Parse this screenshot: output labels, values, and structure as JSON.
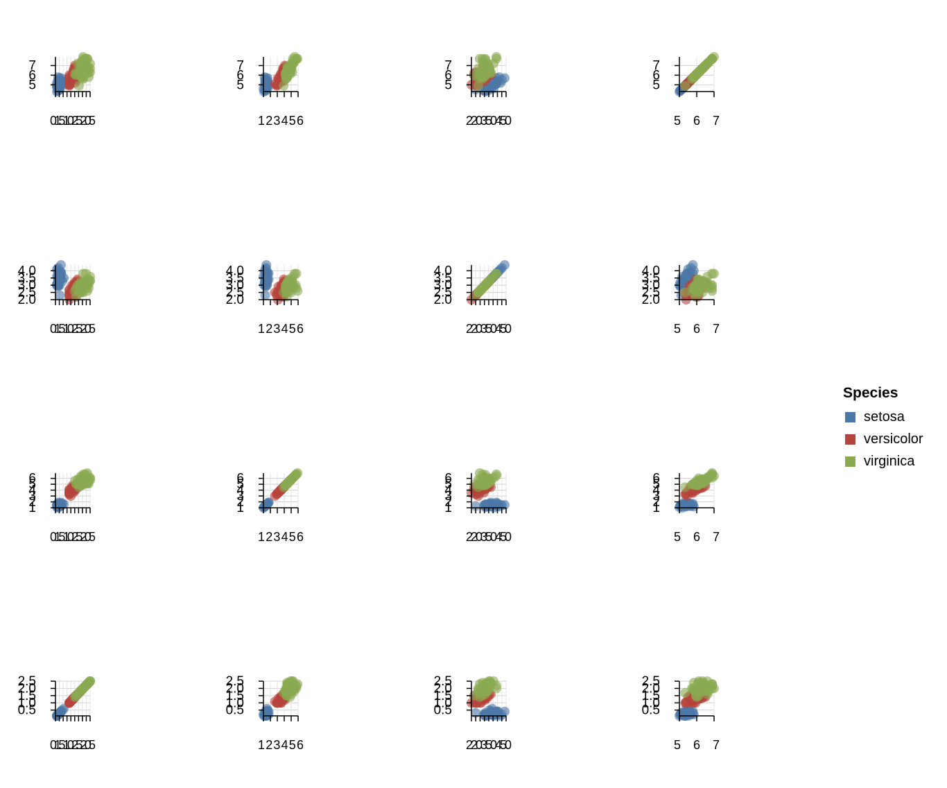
{
  "chart_data": {
    "type": "scatter",
    "layout": "scatterplot matrix (rows = y variable, columns = x variable)",
    "grid": true,
    "legend": {
      "title": "Species",
      "placement": "right",
      "entries": [
        {
          "name": "setosa",
          "color": "#4c78a8"
        },
        {
          "name": "versicolor",
          "color": "#b5443c"
        },
        {
          "name": "virginica",
          "color": "#8aaa52"
        }
      ]
    },
    "columns": [
      {
        "ticks": [
          "0",
          "1",
          "5",
          "1",
          "0",
          "2",
          "5",
          "2",
          "0",
          "5"
        ],
        "range": [
          0,
          2.5
        ]
      },
      {
        "ticks": [
          "1",
          "2",
          "3",
          "4",
          "5",
          "6"
        ],
        "range": [
          1,
          7
        ]
      },
      {
        "ticks": [
          "2",
          "2",
          "0",
          "3",
          "5",
          "0",
          "4",
          "5",
          "0"
        ],
        "range": [
          2,
          4.5
        ]
      },
      {
        "ticks": [
          "5",
          "6",
          "7"
        ],
        "range": [
          4.3,
          7.9
        ]
      }
    ],
    "rows": [
      {
        "ticks": [
          "5",
          "6",
          "7"
        ],
        "tickValues": [
          5,
          6,
          7
        ],
        "range": [
          4.3,
          7.9
        ]
      },
      {
        "ticks": [
          "2.0",
          "2.5",
          "3.0",
          "3.5",
          "4.0"
        ],
        "tickValues": [
          2.0,
          2.5,
          3.0,
          3.5,
          4.0
        ],
        "range": [
          2.0,
          4.4
        ]
      },
      {
        "ticks": [
          "1",
          "2",
          "3",
          "4",
          "5",
          "6"
        ],
        "tickValues": [
          1,
          2,
          3,
          4,
          5,
          6
        ],
        "range": [
          1,
          6.9
        ]
      },
      {
        "ticks": [
          "0.5",
          "1.0",
          "1.5",
          "2.0",
          "2.5"
        ],
        "tickValues": [
          0.5,
          1.0,
          1.5,
          2.0,
          2.5
        ],
        "range": [
          0.1,
          2.5
        ]
      }
    ],
    "series": [
      {
        "name": "setosa",
        "color": "#4c78a8",
        "vars": [
          [
            0.2,
            1.4,
            3.5,
            5.1
          ],
          [
            0.2,
            1.4,
            3.0,
            4.9
          ],
          [
            0.2,
            1.3,
            3.2,
            4.7
          ],
          [
            0.2,
            1.5,
            3.1,
            4.6
          ],
          [
            0.2,
            1.4,
            3.6,
            5.0
          ],
          [
            0.4,
            1.7,
            3.9,
            5.4
          ],
          [
            0.3,
            1.4,
            3.4,
            4.6
          ],
          [
            0.2,
            1.5,
            3.4,
            5.0
          ],
          [
            0.2,
            1.4,
            2.9,
            4.4
          ],
          [
            0.1,
            1.5,
            3.1,
            4.9
          ],
          [
            0.2,
            1.5,
            3.7,
            5.4
          ],
          [
            0.2,
            1.6,
            3.4,
            4.8
          ],
          [
            0.1,
            1.4,
            3.0,
            4.8
          ],
          [
            0.1,
            1.1,
            3.0,
            4.3
          ],
          [
            0.2,
            1.2,
            4.0,
            5.8
          ],
          [
            0.4,
            1.5,
            4.4,
            5.7
          ],
          [
            0.4,
            1.3,
            3.9,
            5.4
          ],
          [
            0.3,
            1.4,
            3.5,
            5.1
          ],
          [
            0.3,
            1.7,
            3.8,
            5.7
          ],
          [
            0.3,
            1.5,
            3.8,
            5.1
          ],
          [
            0.2,
            1.7,
            3.4,
            5.4
          ],
          [
            0.4,
            1.5,
            3.7,
            5.1
          ],
          [
            0.2,
            1.0,
            3.6,
            4.6
          ],
          [
            0.5,
            1.7,
            3.3,
            5.1
          ],
          [
            0.2,
            1.9,
            3.4,
            4.8
          ],
          [
            0.2,
            1.6,
            3.0,
            5.0
          ],
          [
            0.4,
            1.6,
            3.4,
            5.0
          ],
          [
            0.2,
            1.5,
            3.5,
            5.2
          ],
          [
            0.2,
            1.4,
            3.4,
            5.2
          ],
          [
            0.2,
            1.6,
            3.2,
            4.7
          ],
          [
            0.2,
            1.6,
            3.1,
            4.8
          ],
          [
            0.4,
            1.5,
            3.4,
            5.4
          ],
          [
            0.1,
            1.5,
            4.1,
            5.2
          ],
          [
            0.2,
            1.4,
            4.2,
            5.5
          ],
          [
            0.2,
            1.5,
            3.1,
            4.9
          ],
          [
            0.2,
            1.2,
            3.2,
            5.0
          ],
          [
            0.2,
            1.3,
            3.5,
            5.5
          ],
          [
            0.1,
            1.4,
            3.6,
            4.9
          ],
          [
            0.2,
            1.3,
            3.0,
            4.4
          ],
          [
            0.2,
            1.5,
            3.4,
            5.1
          ],
          [
            0.3,
            1.3,
            3.5,
            5.0
          ],
          [
            0.3,
            1.3,
            2.3,
            4.5
          ],
          [
            0.2,
            1.3,
            3.2,
            4.4
          ],
          [
            0.6,
            1.6,
            3.5,
            5.0
          ],
          [
            0.4,
            1.9,
            3.8,
            5.1
          ],
          [
            0.3,
            1.4,
            3.0,
            4.8
          ],
          [
            0.2,
            1.6,
            3.8,
            5.1
          ],
          [
            0.2,
            1.4,
            3.2,
            4.6
          ],
          [
            0.2,
            1.5,
            3.7,
            5.3
          ],
          [
            0.2,
            1.4,
            3.3,
            5.0
          ]
        ]
      },
      {
        "name": "versicolor",
        "color": "#b5443c",
        "vars": [
          [
            1.4,
            4.7,
            3.2,
            7.0
          ],
          [
            1.5,
            4.5,
            3.2,
            6.4
          ],
          [
            1.5,
            4.9,
            3.1,
            6.9
          ],
          [
            1.3,
            4.0,
            2.3,
            5.5
          ],
          [
            1.5,
            4.6,
            2.8,
            6.5
          ],
          [
            1.3,
            4.5,
            2.8,
            5.7
          ],
          [
            1.6,
            4.7,
            3.3,
            6.3
          ],
          [
            1.0,
            3.3,
            2.4,
            4.9
          ],
          [
            1.3,
            4.6,
            2.9,
            6.6
          ],
          [
            1.4,
            3.9,
            2.7,
            5.2
          ],
          [
            1.0,
            3.5,
            2.0,
            5.0
          ],
          [
            1.5,
            4.2,
            3.0,
            5.9
          ],
          [
            1.0,
            4.0,
            2.2,
            6.0
          ],
          [
            1.4,
            4.7,
            2.9,
            6.1
          ],
          [
            1.3,
            3.6,
            2.9,
            5.6
          ],
          [
            1.4,
            4.4,
            3.1,
            6.7
          ],
          [
            1.5,
            4.5,
            3.0,
            5.6
          ],
          [
            1.0,
            4.1,
            2.7,
            5.8
          ],
          [
            1.5,
            4.5,
            2.2,
            6.2
          ],
          [
            1.1,
            3.9,
            2.5,
            5.6
          ],
          [
            1.8,
            4.8,
            3.2,
            5.9
          ],
          [
            1.3,
            4.0,
            2.8,
            6.1
          ],
          [
            1.5,
            4.9,
            2.5,
            6.3
          ],
          [
            1.2,
            4.7,
            2.8,
            6.1
          ],
          [
            1.3,
            4.3,
            2.9,
            6.4
          ],
          [
            1.4,
            4.4,
            3.0,
            6.6
          ],
          [
            1.4,
            4.8,
            2.8,
            6.8
          ],
          [
            1.7,
            5.0,
            3.0,
            6.7
          ],
          [
            1.5,
            4.5,
            2.9,
            6.0
          ],
          [
            1.0,
            3.5,
            2.6,
            5.7
          ],
          [
            1.1,
            3.8,
            2.4,
            5.5
          ],
          [
            1.0,
            3.7,
            2.4,
            5.5
          ],
          [
            1.2,
            3.9,
            2.7,
            5.8
          ],
          [
            1.6,
            5.1,
            2.7,
            6.0
          ],
          [
            1.5,
            4.5,
            3.0,
            5.4
          ],
          [
            1.6,
            4.5,
            3.4,
            6.0
          ],
          [
            1.5,
            4.7,
            3.1,
            6.7
          ],
          [
            1.3,
            4.4,
            2.3,
            6.3
          ],
          [
            1.3,
            4.1,
            3.0,
            5.6
          ],
          [
            1.3,
            4.0,
            2.5,
            5.5
          ],
          [
            1.2,
            4.4,
            2.6,
            5.5
          ],
          [
            1.4,
            4.6,
            3.0,
            6.1
          ],
          [
            1.2,
            4.0,
            2.6,
            5.8
          ],
          [
            1.0,
            3.3,
            2.3,
            5.0
          ],
          [
            1.3,
            4.2,
            2.7,
            5.6
          ],
          [
            1.2,
            4.2,
            3.0,
            5.7
          ],
          [
            1.3,
            4.2,
            2.9,
            5.7
          ],
          [
            1.3,
            4.3,
            2.9,
            6.2
          ],
          [
            1.1,
            3.0,
            2.5,
            5.1
          ],
          [
            1.3,
            4.1,
            2.8,
            5.7
          ]
        ]
      },
      {
        "name": "virginica",
        "color": "#8aaa52",
        "vars": [
          [
            2.5,
            6.0,
            3.3,
            6.3
          ],
          [
            1.9,
            5.1,
            2.7,
            5.8
          ],
          [
            2.1,
            5.9,
            3.0,
            7.1
          ],
          [
            1.8,
            5.6,
            2.9,
            6.3
          ],
          [
            2.2,
            5.8,
            3.0,
            6.5
          ],
          [
            2.1,
            6.6,
            3.0,
            7.6
          ],
          [
            1.7,
            4.5,
            2.5,
            4.9
          ],
          [
            1.8,
            6.3,
            2.9,
            7.3
          ],
          [
            1.8,
            5.8,
            2.5,
            6.7
          ],
          [
            2.5,
            6.1,
            3.6,
            7.2
          ],
          [
            2.0,
            5.1,
            3.2,
            6.5
          ],
          [
            1.9,
            5.3,
            2.7,
            6.4
          ],
          [
            2.1,
            5.5,
            3.0,
            6.8
          ],
          [
            2.0,
            5.0,
            2.5,
            5.7
          ],
          [
            2.4,
            5.1,
            2.8,
            5.8
          ],
          [
            2.3,
            5.3,
            3.2,
            6.4
          ],
          [
            1.8,
            5.5,
            3.0,
            6.5
          ],
          [
            2.2,
            6.7,
            3.8,
            7.7
          ],
          [
            2.3,
            6.9,
            2.6,
            7.7
          ],
          [
            1.5,
            5.0,
            2.2,
            6.0
          ],
          [
            2.3,
            5.7,
            3.2,
            6.9
          ],
          [
            2.0,
            4.9,
            2.8,
            5.6
          ],
          [
            2.0,
            6.7,
            2.8,
            7.7
          ],
          [
            1.8,
            4.9,
            2.7,
            6.3
          ],
          [
            2.1,
            5.7,
            3.3,
            6.7
          ],
          [
            1.8,
            6.0,
            3.2,
            7.2
          ],
          [
            1.8,
            4.8,
            2.8,
            6.2
          ],
          [
            1.8,
            4.9,
            3.0,
            6.1
          ],
          [
            2.1,
            5.6,
            2.8,
            6.4
          ],
          [
            1.6,
            5.8,
            3.0,
            7.2
          ],
          [
            1.9,
            6.1,
            2.8,
            7.4
          ],
          [
            2.0,
            6.4,
            3.8,
            7.9
          ],
          [
            2.2,
            5.6,
            2.8,
            6.4
          ],
          [
            1.5,
            5.1,
            2.8,
            6.3
          ],
          [
            1.4,
            5.6,
            2.6,
            6.1
          ],
          [
            2.3,
            6.1,
            3.0,
            7.7
          ],
          [
            2.4,
            5.6,
            3.4,
            6.3
          ],
          [
            1.8,
            5.5,
            3.1,
            6.4
          ],
          [
            1.8,
            4.8,
            3.0,
            6.0
          ],
          [
            2.1,
            5.4,
            3.1,
            6.9
          ],
          [
            2.4,
            5.6,
            3.1,
            6.7
          ],
          [
            2.3,
            5.1,
            3.1,
            6.9
          ],
          [
            1.9,
            5.1,
            2.7,
            5.8
          ],
          [
            2.3,
            5.9,
            3.2,
            6.8
          ],
          [
            2.5,
            5.7,
            3.3,
            6.7
          ],
          [
            2.3,
            5.2,
            3.0,
            6.7
          ],
          [
            1.9,
            5.0,
            2.5,
            6.3
          ],
          [
            2.0,
            5.2,
            3.0,
            6.5
          ],
          [
            2.3,
            5.4,
            3.4,
            6.2
          ],
          [
            1.8,
            5.1,
            3.0,
            5.9
          ]
        ]
      }
    ]
  }
}
